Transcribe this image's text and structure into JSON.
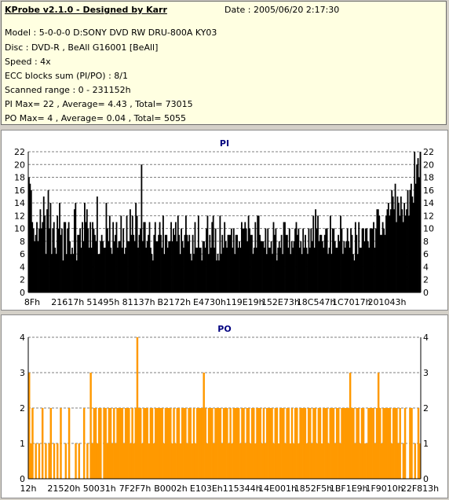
{
  "info": {
    "title": "KProbe v2.1.0 - Designed by Karr",
    "date": "Date : 2005/06/20 2:17:30",
    "lines": [
      "Model : 5-0-0-0 D:SONY    DVD RW DRU-800A  KY03",
      "Disc : DVD-R , BeAll G16001 [BeAll]",
      "Speed : 4x",
      "ECC blocks sum (PI/PO) : 8/1",
      "Scanned range : 0 - 231152h",
      "PI Max= 22 , Average= 4.43 , Total= 73015",
      "PO Max= 4 , Average= 0.04 , Total= 5055"
    ]
  },
  "chart_data": [
    {
      "type": "bar",
      "title": "PI",
      "ylim": [
        0,
        22
      ],
      "yticks": [
        0,
        2,
        4,
        6,
        8,
        10,
        12,
        14,
        16,
        18,
        20,
        22
      ],
      "xtick_labels": [
        "8Fh",
        "21617h",
        "51495h",
        "81137h",
        "B2172h",
        "E4730h",
        "119E19h",
        "152E73h",
        "18C547h",
        "1C7017h",
        "201043h"
      ],
      "grid": true,
      "bar_color": "#000000",
      "values": [
        18,
        17,
        16,
        11,
        10,
        8,
        9,
        11,
        8,
        10,
        13,
        10,
        11,
        15,
        12,
        6,
        13,
        16,
        10,
        14,
        6,
        10,
        11,
        7,
        6,
        12,
        10,
        14,
        9,
        10,
        5,
        11,
        11,
        6,
        10,
        11,
        8,
        6,
        7,
        6,
        13,
        14,
        5,
        9,
        9,
        10,
        7,
        11,
        8,
        14,
        11,
        13,
        10,
        7,
        11,
        7,
        11,
        10,
        9,
        8,
        15,
        6,
        6,
        8,
        9,
        8,
        7,
        7,
        14,
        10,
        8,
        12,
        7,
        6,
        11,
        8,
        9,
        11,
        7,
        8,
        8,
        12,
        7,
        10,
        6,
        7,
        12,
        8,
        8,
        13,
        9,
        12,
        9,
        8,
        14,
        12,
        7,
        9,
        10,
        20,
        8,
        11,
        11,
        7,
        8,
        9,
        11,
        7,
        6,
        5,
        9,
        11,
        8,
        8,
        9,
        11,
        9,
        7,
        12,
        6,
        9,
        9,
        7,
        8,
        8,
        11,
        8,
        10,
        9,
        11,
        8,
        12,
        9,
        6,
        10,
        8,
        7,
        9,
        12,
        9,
        8,
        9,
        6,
        5,
        9,
        6,
        11,
        7,
        7,
        12,
        7,
        7,
        5,
        8,
        8,
        7,
        10,
        12,
        6,
        9,
        7,
        11,
        12,
        7,
        10,
        5,
        6,
        5,
        12,
        6,
        9,
        7,
        11,
        8,
        7,
        9,
        9,
        9,
        10,
        7,
        10,
        6,
        9,
        9,
        7,
        8,
        7,
        11,
        10,
        10,
        11,
        10,
        8,
        12,
        10,
        9,
        9,
        6,
        7,
        11,
        7,
        12,
        12,
        9,
        8,
        8,
        8,
        7,
        10,
        6,
        10,
        7,
        7,
        8,
        6,
        11,
        9,
        10,
        5,
        7,
        8,
        7,
        9,
        6,
        11,
        11,
        9,
        9,
        7,
        10,
        6,
        8,
        7,
        8,
        10,
        11,
        9,
        10,
        7,
        8,
        6,
        10,
        7,
        9,
        7,
        6,
        10,
        7,
        10,
        8,
        12,
        7,
        13,
        10,
        12,
        8,
        9,
        9,
        8,
        7,
        9,
        10,
        10,
        6,
        7,
        12,
        6,
        10,
        10,
        8,
        7,
        7,
        9,
        8,
        12,
        10,
        6,
        8,
        7,
        8,
        10,
        8,
        7,
        10,
        9,
        6,
        5,
        11,
        9,
        6,
        11,
        7,
        7,
        10,
        10,
        8,
        10,
        10,
        8,
        7,
        10,
        10,
        10,
        11,
        7,
        10,
        13,
        13,
        12,
        9,
        9,
        11,
        10,
        9,
        12,
        13,
        14,
        12,
        13,
        16,
        15,
        13,
        17,
        11,
        15,
        14,
        12,
        15,
        13,
        11,
        14,
        12,
        13,
        16,
        12,
        16,
        17,
        15,
        14,
        22,
        17,
        20,
        21,
        18,
        22
      ]
    },
    {
      "type": "bar",
      "title": "PO",
      "ylim": [
        0,
        4
      ],
      "yticks": [
        0,
        1,
        2,
        3,
        4
      ],
      "xtick_labels": [
        "12h",
        "21520h",
        "50031h",
        "7F2F7h",
        "B0002h",
        "E103Eh",
        "115344h",
        "14E001h",
        "1852F5h",
        "1BF1E9h",
        "1F9010h",
        "22F813h"
      ],
      "grid": true,
      "bar_color": "#ff9900",
      "values": [
        3,
        1,
        2,
        0,
        1,
        0,
        1,
        0,
        2,
        0,
        1,
        0,
        1,
        2,
        0,
        1,
        0,
        1,
        0,
        2,
        0,
        0,
        1,
        0,
        2,
        0,
        0,
        0,
        1,
        0,
        1,
        0,
        0,
        2,
        0,
        1,
        0,
        3,
        1,
        2,
        2,
        1,
        2,
        2,
        0,
        2,
        2,
        1,
        2,
        2,
        1,
        2,
        1,
        2,
        2,
        2,
        2,
        1,
        2,
        2,
        2,
        1,
        2,
        1,
        2,
        4,
        2,
        2,
        1,
        2,
        2,
        2,
        1,
        2,
        2,
        1,
        2,
        2,
        2,
        2,
        2,
        1,
        2,
        2,
        2,
        2,
        1,
        2,
        1,
        2,
        2,
        1,
        2,
        2,
        2,
        1,
        2,
        2,
        1,
        2,
        1,
        2,
        2,
        2,
        2,
        3,
        2,
        1,
        2,
        2,
        2,
        1,
        2,
        2,
        2,
        2,
        1,
        2,
        2,
        2,
        1,
        2,
        1,
        2,
        2,
        2,
        2,
        1,
        2,
        2,
        1,
        2,
        2,
        1,
        2,
        2,
        1,
        2,
        2,
        2,
        1,
        2,
        1,
        2,
        2,
        2,
        2,
        1,
        2,
        2,
        1,
        2,
        2,
        2,
        1,
        2,
        2,
        1,
        2,
        1,
        2,
        2,
        1,
        2,
        2,
        2,
        2,
        1,
        2,
        2,
        1,
        2,
        2,
        1,
        2,
        2,
        1,
        2,
        2,
        2,
        1,
        2,
        2,
        2,
        1,
        2,
        2,
        1,
        2,
        2,
        2,
        2,
        2,
        3,
        2,
        2,
        1,
        2,
        2,
        1,
        2,
        2,
        1,
        1,
        2,
        2,
        2,
        2,
        1,
        2,
        3,
        2,
        1,
        2,
        2,
        2,
        2,
        2,
        1,
        2,
        2,
        2,
        1,
        2,
        0,
        1,
        2,
        0,
        0,
        2,
        2,
        0,
        1,
        0,
        2,
        1
      ]
    }
  ]
}
